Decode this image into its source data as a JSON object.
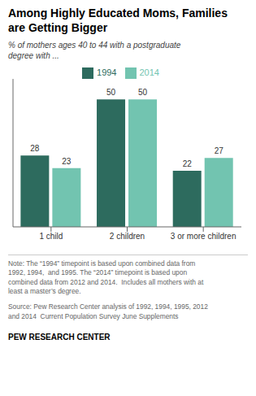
{
  "chart_data": {
    "type": "bar",
    "title": "Among Highly Educated Moms, Families\nare Getting Bigger",
    "subtitle": "% of mothers ages 40 to 44 with a postgraduate\ndegree with ...",
    "categories": [
      "1 child",
      "2 children",
      "3 or more children"
    ],
    "series": [
      {
        "name": "1994",
        "color": "#2d6b5e",
        "values": [
          28,
          50,
          22
        ]
      },
      {
        "name": "2014",
        "color": "#72c4b0",
        "values": [
          23,
          50,
          27
        ]
      }
    ],
    "ylim": [
      0,
      58
    ],
    "tick_labels": "x",
    "data_labels": true,
    "legend": "top",
    "grid": false,
    "note": "Note: The “1994” timepoint is based upon combined data from\n1992, 1994,  and 1995. The “2014” timepoint is based upon\ncombined data from 2012 and 2014.  Includes all mothers with at\nleast a master’s degree.",
    "source": "Source: Pew Research Center analysis of 1992, 1994, 1995, 2012\nand 2014  Current Population Survey June Supplements",
    "branding": "PEW RESEARCH CENTER"
  }
}
